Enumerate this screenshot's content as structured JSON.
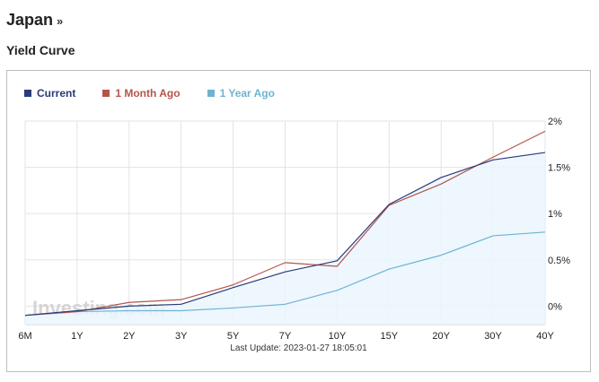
{
  "header": {
    "country": "Japan",
    "chevron": "»",
    "section_title": "Yield Curve"
  },
  "last_update": "Last Update: 2023-01-27 18:05:01",
  "watermark": "Investing.com",
  "colors": {
    "current": "#2b3a7a",
    "month_ago": "#b5554a",
    "year_ago": "#6fb3d2",
    "area_fill": "#eaf6fd",
    "grid": "#e3e3e3"
  },
  "chart_data": {
    "type": "line",
    "categories": [
      "6M",
      "1Y",
      "2Y",
      "3Y",
      "5Y",
      "7Y",
      "10Y",
      "15Y",
      "20Y",
      "30Y",
      "40Y"
    ],
    "y_tick_labels": [
      "0%",
      "0.5%",
      "1%",
      "1.5%",
      "2%"
    ],
    "y_ticks": [
      0,
      0.5,
      1,
      1.5,
      2
    ],
    "ylim": [
      -0.2,
      2
    ],
    "y_axis_position": "right",
    "grid": true,
    "legend_position": "top-left",
    "series": [
      {
        "name": "Current",
        "color": "#2b3a7a",
        "values": [
          -0.1,
          -0.05,
          0.0,
          0.02,
          0.2,
          0.37,
          0.49,
          1.1,
          1.39,
          1.58,
          1.66
        ]
      },
      {
        "name": "1 Month Ago",
        "color": "#b5554a",
        "values": [
          -0.1,
          -0.06,
          0.04,
          0.07,
          0.23,
          0.47,
          0.43,
          1.09,
          1.32,
          1.61,
          1.89
        ]
      },
      {
        "name": "1 Year Ago",
        "color": "#6fb3d2",
        "values": [
          -0.1,
          -0.06,
          -0.05,
          -0.05,
          -0.02,
          0.02,
          0.17,
          0.4,
          0.55,
          0.76,
          0.8
        ]
      }
    ]
  }
}
